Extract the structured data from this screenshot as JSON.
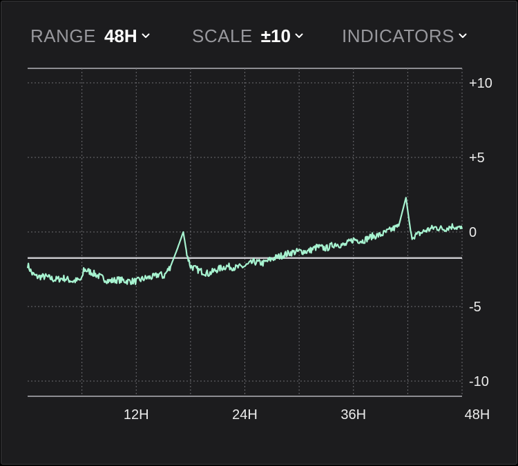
{
  "toolbar": {
    "range_label": "RANGE",
    "range_value": "48H",
    "scale_label": "SCALE",
    "scale_value": "±10",
    "indicators_label": "INDICATORS"
  },
  "icons": {
    "dropdown": "chevron-down-icon"
  },
  "colors": {
    "series": "#a7f3d0",
    "reference_line": "#c7c7cc",
    "grid": "#6e6e73",
    "background": "#1c1c1e"
  },
  "chart_data": {
    "type": "line",
    "x_range": [
      0,
      48
    ],
    "x_unit": "hours",
    "ylim": [
      -10,
      10
    ],
    "x_ticks": [
      12,
      24,
      36,
      48
    ],
    "x_tick_labels": [
      "12H",
      "24H",
      "36H",
      "48H"
    ],
    "y_ticks": [
      10,
      5,
      0,
      -5,
      -10
    ],
    "y_tick_labels": [
      "+10",
      "+5",
      "0",
      "-5",
      "-10"
    ],
    "grid": true,
    "reference_line_y": -1.75,
    "series": [
      {
        "x": [
          0,
          0.5,
          1,
          2,
          3,
          4,
          5,
          6,
          6.2,
          7,
          8,
          9,
          10,
          11,
          12,
          13,
          14,
          14.6,
          15,
          15.8,
          16.5,
          17.2,
          17.6,
          18,
          19,
          20,
          21,
          22,
          23,
          24,
          25,
          26,
          27,
          28,
          29,
          30,
          31,
          32,
          33,
          34,
          35,
          36,
          37,
          38,
          39,
          40,
          41,
          41.8,
          42.4,
          43,
          44,
          45,
          46,
          47,
          48
        ],
        "y": [
          -2.2,
          -2.8,
          -3.0,
          -3.0,
          -3.2,
          -3.1,
          -3.3,
          -3.2,
          -2.5,
          -2.7,
          -3.0,
          -3.3,
          -3.2,
          -3.3,
          -3.3,
          -3.1,
          -3.0,
          -2.8,
          -3.0,
          -2.3,
          -1.2,
          0.0,
          -1.5,
          -2.3,
          -2.6,
          -2.8,
          -2.5,
          -2.3,
          -2.4,
          -2.3,
          -2.0,
          -2.1,
          -1.8,
          -1.6,
          -1.4,
          -1.3,
          -1.3,
          -1.0,
          -1.1,
          -0.8,
          -0.9,
          -0.5,
          -0.6,
          -0.3,
          -0.2,
          0.1,
          0.4,
          2.3,
          -0.3,
          -0.2,
          0.1,
          0.3,
          0.2,
          0.4,
          0.2
        ]
      }
    ]
  }
}
